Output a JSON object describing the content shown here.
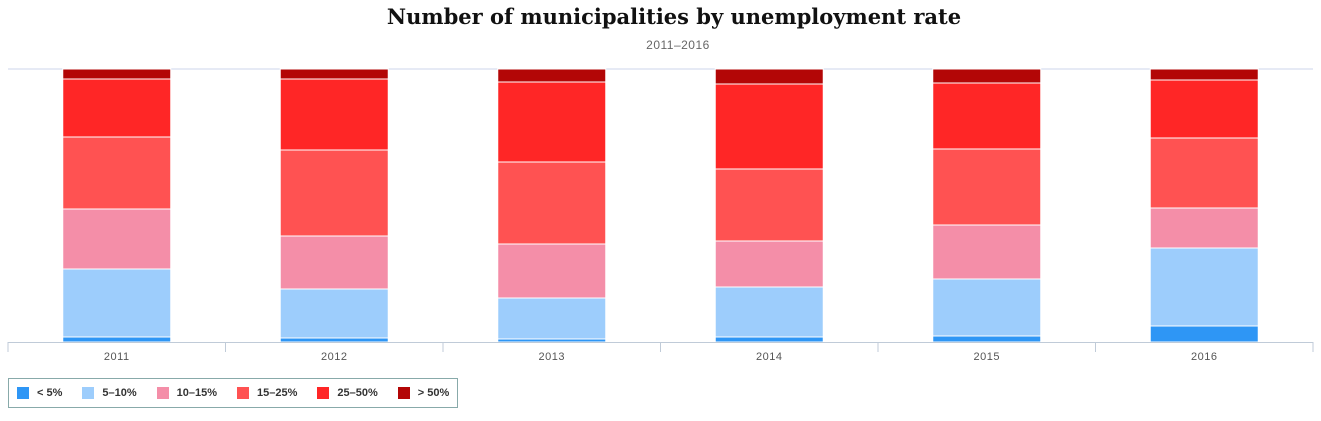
{
  "chart_data": {
    "type": "bar",
    "stacked": true,
    "title": "Number of municipalities by unemployment rate",
    "subtitle": "2011–2016",
    "categories": [
      "2011",
      "2012",
      "2013",
      "2014",
      "2015",
      "2016"
    ],
    "series": [
      {
        "name": "< 5%",
        "color": "#2e96f5",
        "values": [
          5,
          4,
          3,
          5,
          6,
          16
        ]
      },
      {
        "name": "5–10%",
        "color": "#9dcdfc",
        "values": [
          68,
          49,
          41,
          50,
          57,
          78
        ]
      },
      {
        "name": "10–15%",
        "color": "#f48ea8",
        "values": [
          60,
          53,
          54,
          46,
          54,
          40
        ]
      },
      {
        "name": "15–25%",
        "color": "#ff5252",
        "values": [
          72,
          86,
          82,
          72,
          76,
          70
        ]
      },
      {
        "name": "25–50%",
        "color": "#ff2626",
        "values": [
          58,
          71,
          80,
          85,
          66,
          58
        ]
      },
      {
        "name": "> 50%",
        "color": "#b30606",
        "values": [
          10,
          10,
          13,
          15,
          14,
          11
        ]
      }
    ],
    "grid": false,
    "legend": "bottom-left"
  }
}
